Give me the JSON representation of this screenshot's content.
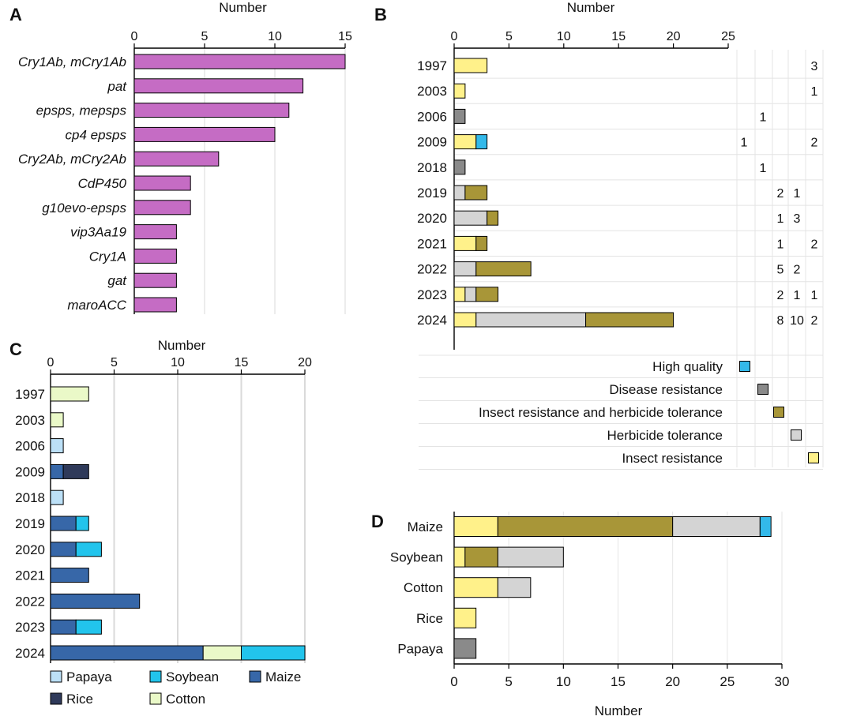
{
  "colors": {
    "insect": "#FFF18A",
    "herbicide": "#D4D4D4",
    "insect_herbicide": "#A89638",
    "disease": "#8A8A8A",
    "quality": "#33B9EA",
    "papaya": "#BCE0F7",
    "soybean": "#22C4EC",
    "maize": "#3767A8",
    "rice": "#2F3A5A",
    "cotton": "#EAF9C8",
    "gene": "#C56CC4",
    "grid": "#DADADA"
  },
  "panels": {
    "A": "A",
    "B": "B",
    "C": "C",
    "D": "D"
  },
  "chart_data": [
    {
      "panel": "A",
      "type": "bar",
      "orientation": "horizontal",
      "xlabel": "Number",
      "xlim": [
        0,
        15
      ],
      "xticks": [
        0,
        5,
        10,
        15
      ],
      "categories": [
        "Cry1Ab, mCry1Ab",
        "pat",
        "epsps, mepsps",
        "cp4 epsps",
        "Cry2Ab, mCry2Ab",
        "CdP450",
        "g10evo-epsps",
        "vip3Aa19",
        "Cry1A",
        "gat",
        "maroACC"
      ],
      "values": [
        15,
        12,
        11,
        10,
        6,
        4,
        4,
        3,
        3,
        3,
        3
      ]
    },
    {
      "panel": "B",
      "type": "bar",
      "orientation": "horizontal",
      "stacked": true,
      "xlabel": "Number",
      "xlim": [
        0,
        25
      ],
      "xticks": [
        0,
        5,
        10,
        15,
        20,
        25
      ],
      "categories": [
        "1997",
        "2003",
        "2006",
        "2009",
        "2018",
        "2019",
        "2020",
        "2021",
        "2022",
        "2023",
        "2024"
      ],
      "series": [
        {
          "name": "Insect resistance",
          "color_key": "insect",
          "values": [
            3,
            1,
            0,
            2,
            0,
            0,
            0,
            2,
            0,
            1,
            2
          ]
        },
        {
          "name": "Herbicide tolerance",
          "color_key": "herbicide",
          "values": [
            0,
            0,
            0,
            0,
            0,
            1,
            3,
            0,
            2,
            1,
            10
          ]
        },
        {
          "name": "Insect  resistance and herbicide tolerance",
          "color_key": "insect_herbicide",
          "values": [
            0,
            0,
            0,
            0,
            0,
            2,
            1,
            1,
            5,
            2,
            8
          ]
        },
        {
          "name": "Disease resistance",
          "color_key": "disease",
          "values": [
            0,
            0,
            1,
            0,
            1,
            0,
            0,
            0,
            0,
            0,
            0
          ]
        },
        {
          "name": "High quality",
          "color_key": "quality",
          "values": [
            0,
            0,
            0,
            1,
            0,
            0,
            0,
            0,
            0,
            0,
            0
          ]
        }
      ],
      "legend_order": [
        "High quality",
        "Disease resistance",
        "Insect  resistance and herbicide tolerance",
        "Herbicide tolerance",
        "Insect resistance"
      ],
      "count_table": [
        {
          "year": "1997",
          "cells": [
            "",
            "",
            "",
            "",
            "3"
          ]
        },
        {
          "year": "2003",
          "cells": [
            "",
            "",
            "",
            "",
            "1"
          ]
        },
        {
          "year": "2006",
          "cells": [
            "",
            "1",
            "",
            "",
            ""
          ]
        },
        {
          "year": "2009",
          "cells": [
            "1",
            "",
            "",
            "",
            "2"
          ]
        },
        {
          "year": "2018",
          "cells": [
            "",
            "1",
            "",
            "",
            ""
          ]
        },
        {
          "year": "2019",
          "cells": [
            "",
            "",
            "2",
            "1",
            ""
          ]
        },
        {
          "year": "2020",
          "cells": [
            "",
            "",
            "1",
            "3",
            ""
          ]
        },
        {
          "year": "2021",
          "cells": [
            "",
            "",
            "1",
            "",
            "2"
          ]
        },
        {
          "year": "2022",
          "cells": [
            "",
            "",
            "5",
            "2",
            ""
          ]
        },
        {
          "year": "2023",
          "cells": [
            "",
            "",
            "2",
            "1",
            "1"
          ]
        },
        {
          "year": "2024",
          "cells": [
            "",
            "",
            "8",
            "10",
            "2"
          ]
        }
      ]
    },
    {
      "panel": "C",
      "type": "bar",
      "orientation": "horizontal",
      "stacked": true,
      "xlabel": "Number",
      "xlim": [
        0,
        20
      ],
      "xticks": [
        0,
        5,
        10,
        15,
        20
      ],
      "categories": [
        "1997",
        "2003",
        "2006",
        "2009",
        "2018",
        "2019",
        "2020",
        "2021",
        "2022",
        "2023",
        "2024"
      ],
      "series": [
        {
          "name": "Papaya",
          "color_key": "papaya",
          "values": [
            0,
            0,
            1,
            0,
            1,
            0,
            0,
            0,
            0,
            0,
            0
          ]
        },
        {
          "name": "Maize",
          "color_key": "maize",
          "values": [
            0,
            0,
            0,
            1,
            0,
            2,
            2,
            3,
            7,
            2,
            12
          ]
        },
        {
          "name": "Rice",
          "color_key": "rice",
          "values": [
            0,
            0,
            0,
            2,
            0,
            0,
            0,
            0,
            0,
            0,
            0
          ]
        },
        {
          "name": "Cotton",
          "color_key": "cotton",
          "values": [
            3,
            1,
            0,
            0,
            0,
            0,
            0,
            0,
            0,
            0,
            3
          ]
        },
        {
          "name": "Soybean",
          "color_key": "soybean",
          "values": [
            0,
            0,
            0,
            0,
            0,
            1,
            2,
            0,
            0,
            2,
            5
          ]
        }
      ],
      "legend_rows": [
        [
          "Papaya",
          "Soybean",
          "Maize"
        ],
        [
          "Rice",
          "Cotton"
        ]
      ]
    },
    {
      "panel": "D",
      "type": "bar",
      "orientation": "horizontal",
      "stacked": true,
      "xlabel": "Number",
      "xlim": [
        0,
        30
      ],
      "xticks": [
        0,
        5,
        10,
        15,
        20,
        25,
        30
      ],
      "categories": [
        "Maize",
        "Soybean",
        "Cotton",
        "Rice",
        "Papaya"
      ],
      "series": [
        {
          "name": "Insect resistance",
          "color_key": "insect",
          "values": [
            4,
            1,
            4,
            2,
            0
          ]
        },
        {
          "name": "Insect  resistance and herbicide tolerance",
          "color_key": "insect_herbicide",
          "values": [
            16,
            3,
            0,
            0,
            0
          ]
        },
        {
          "name": "Herbicide tolerance",
          "color_key": "herbicide",
          "values": [
            8,
            6,
            3,
            0,
            0
          ]
        },
        {
          "name": "High quality",
          "color_key": "quality",
          "values": [
            1,
            0,
            0,
            0,
            0
          ]
        },
        {
          "name": "Disease resistance",
          "color_key": "disease",
          "values": [
            0,
            0,
            0,
            0,
            2
          ]
        }
      ]
    }
  ]
}
